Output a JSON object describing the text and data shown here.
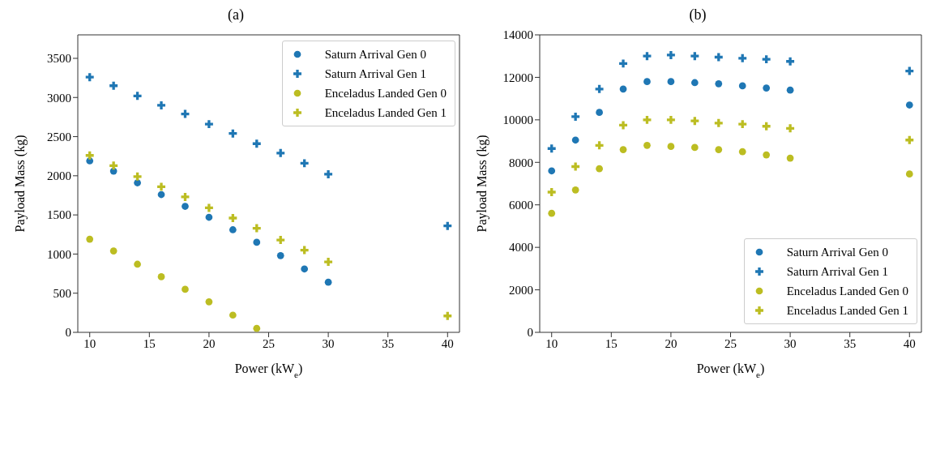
{
  "chart_data": [
    {
      "type": "scatter",
      "title": "(a)",
      "xlabel": "Power (kW$_{e}$)",
      "ylabel": "Payload Mass (kg)",
      "x": [
        10,
        12,
        14,
        16,
        18,
        20,
        22,
        24,
        26,
        28,
        30,
        40
      ],
      "series": [
        {
          "name": "Saturn Arrival Gen 0",
          "color": "#1f77b4",
          "marker": "circle",
          "values": [
            2190,
            2060,
            1910,
            1760,
            1610,
            1470,
            1310,
            1150,
            980,
            810,
            640,
            null
          ]
        },
        {
          "name": "Saturn Arrival Gen 1",
          "color": "#1f77b4",
          "marker": "cross",
          "values": [
            3260,
            3150,
            3020,
            2900,
            2790,
            2660,
            2540,
            2410,
            2290,
            2160,
            2020,
            1360
          ]
        },
        {
          "name": "Enceladus Landed Gen 0",
          "color": "#bcbd22",
          "marker": "circle",
          "values": [
            1190,
            1040,
            870,
            710,
            550,
            390,
            220,
            50,
            null,
            null,
            null,
            null
          ]
        },
        {
          "name": "Enceladus Landed Gen 1",
          "color": "#bcbd22",
          "marker": "cross",
          "values": [
            2260,
            2130,
            1990,
            1860,
            1730,
            1590,
            1460,
            1330,
            1180,
            1050,
            900,
            210
          ]
        }
      ],
      "xlim": [
        9,
        41
      ],
      "xticks": [
        10,
        15,
        20,
        25,
        30,
        35,
        40
      ],
      "ylim": [
        0,
        3800
      ],
      "yticks": [
        0,
        500,
        1000,
        1500,
        2000,
        2500,
        3000,
        3500
      ],
      "grid": false,
      "legend": "top right"
    },
    {
      "type": "scatter",
      "title": "(b)",
      "xlabel": "Power (kW$_{e}$)",
      "ylabel": "Payload Mass (kg)",
      "x": [
        10,
        12,
        14,
        16,
        18,
        20,
        22,
        24,
        26,
        28,
        30,
        40
      ],
      "series": [
        {
          "name": "Saturn Arrival Gen 0",
          "color": "#1f77b4",
          "marker": "circle",
          "values": [
            7600,
            9050,
            10350,
            11450,
            11800,
            11800,
            11750,
            11700,
            11600,
            11500,
            11400,
            10700
          ]
        },
        {
          "name": "Saturn Arrival Gen 1",
          "color": "#1f77b4",
          "marker": "cross",
          "values": [
            8650,
            10150,
            11450,
            12650,
            13000,
            13050,
            13000,
            12950,
            12900,
            12850,
            12750,
            12300
          ]
        },
        {
          "name": "Enceladus Landed Gen 0",
          "color": "#bcbd22",
          "marker": "circle",
          "values": [
            5600,
            6700,
            7700,
            8600,
            8800,
            8750,
            8700,
            8600,
            8500,
            8350,
            8200,
            7450
          ]
        },
        {
          "name": "Enceladus Landed Gen 1",
          "color": "#bcbd22",
          "marker": "cross",
          "values": [
            6600,
            7800,
            8800,
            9750,
            10000,
            10000,
            9950,
            9850,
            9800,
            9700,
            9600,
            9050
          ]
        }
      ],
      "xlim": [
        9,
        41
      ],
      "xticks": [
        10,
        15,
        20,
        25,
        30,
        35,
        40
      ],
      "ylim": [
        0,
        14000
      ],
      "yticks": [
        0,
        2000,
        4000,
        6000,
        8000,
        10000,
        12000,
        14000
      ],
      "grid": false,
      "legend": "bottom right"
    }
  ]
}
